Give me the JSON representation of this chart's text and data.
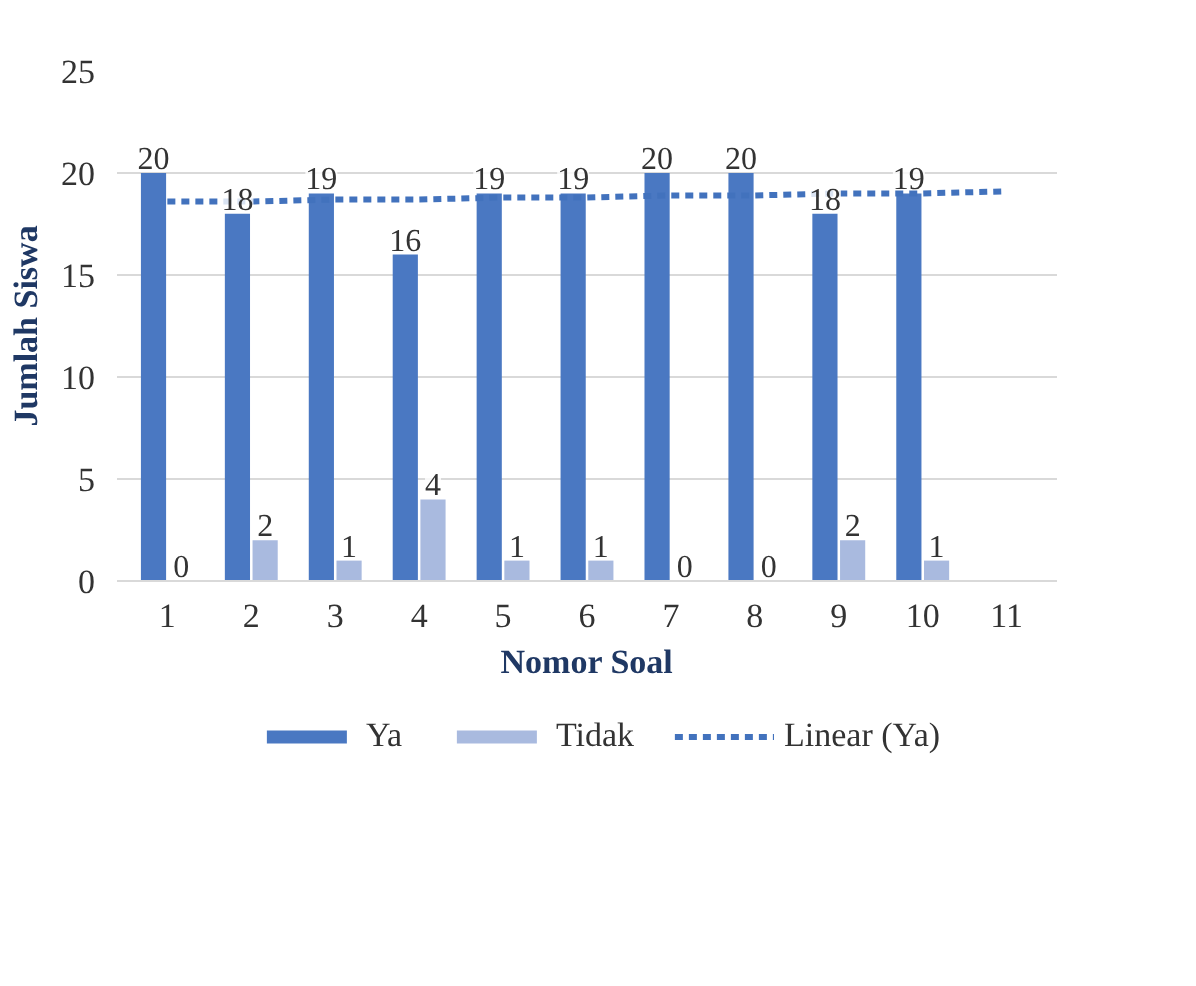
{
  "chart_data": {
    "type": "bar",
    "xlabel": "Nomor Soal",
    "ylabel": "Jumlah Siswa",
    "categories": [
      "1",
      "2",
      "3",
      "4",
      "5",
      "6",
      "7",
      "8",
      "9",
      "10",
      "11"
    ],
    "series": [
      {
        "name": "Ya",
        "color": "#4a78c2",
        "values": [
          20,
          18,
          19,
          16,
          19,
          19,
          20,
          20,
          18,
          19,
          null
        ],
        "value_labels": [
          "20",
          "18",
          "19",
          "16",
          "19",
          "19",
          "20",
          "20",
          "18",
          "19",
          null
        ]
      },
      {
        "name": "Tidak",
        "color": "#a9badf",
        "values": [
          0,
          2,
          1,
          4,
          1,
          1,
          0,
          0,
          2,
          1,
          null
        ],
        "value_labels": [
          "0",
          "2",
          "1",
          "4",
          "1",
          "1",
          "0",
          "0",
          "2",
          "1",
          null
        ]
      },
      {
        "name": "Linear (Ya)",
        "type": "line",
        "line_style": "dashed",
        "color": "#4272bd",
        "values": [
          18.6,
          18.6,
          18.7,
          18.7,
          18.8,
          18.8,
          18.9,
          18.9,
          19.0,
          19.0,
          19.1
        ]
      }
    ],
    "ylim": [
      0,
      25
    ],
    "yticks": [
      0,
      5,
      10,
      15,
      20,
      25
    ],
    "grid": "y",
    "legend": "bottom"
  }
}
